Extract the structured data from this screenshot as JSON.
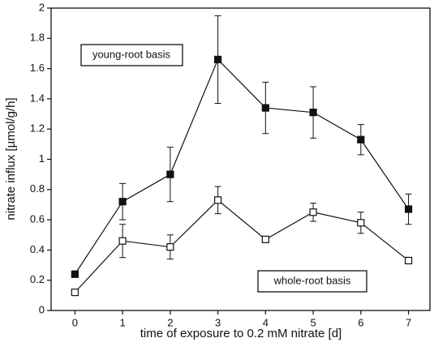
{
  "chart_data": {
    "type": "line",
    "x_label": "time of exposure to 0.2 mM nitrate [d]",
    "y_label": "nitrate influx [µmol/g/h]",
    "x": [
      0,
      1,
      2,
      3,
      4,
      5,
      6,
      7
    ],
    "series": [
      {
        "name": "young-root basis",
        "color": "#111111",
        "marker": "filled-square",
        "values": [
          0.24,
          0.72,
          0.9,
          1.66,
          1.34,
          1.31,
          1.13,
          0.67
        ],
        "errors": [
          0.01,
          0.12,
          0.18,
          0.29,
          0.17,
          0.17,
          0.1,
          0.1
        ]
      },
      {
        "name": "whole-root basis",
        "color": "#111111",
        "marker": "open-square",
        "values": [
          0.12,
          0.46,
          0.42,
          0.73,
          0.47,
          0.65,
          0.58,
          0.33
        ],
        "errors": [
          0.01,
          0.11,
          0.08,
          0.09,
          0.02,
          0.06,
          0.07,
          0.02
        ]
      }
    ],
    "xlim": [
      -0.5,
      7.45
    ],
    "xticks": [
      0,
      1,
      2,
      3,
      4,
      5,
      6,
      7
    ],
    "ylim": [
      0,
      2
    ],
    "yticks": [
      0,
      0.2,
      0.4,
      0.6,
      0.8,
      1,
      1.2,
      1.4,
      1.6,
      1.8,
      2
    ],
    "grid": false
  }
}
